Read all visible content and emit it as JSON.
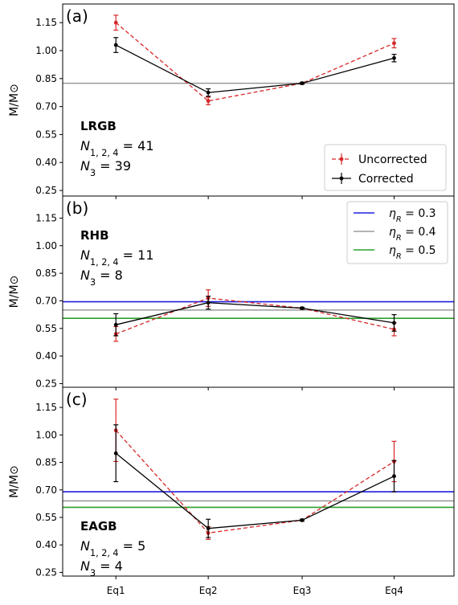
{
  "chart_data": [
    {
      "type": "line",
      "panel_label": "(a)",
      "ylabel": "M/M⊙",
      "ylim": [
        0.22,
        1.25
      ],
      "yticks": [
        "0.25",
        "0.40",
        "0.55",
        "0.70",
        "0.85",
        "1.00",
        "1.15"
      ],
      "ytick_values": [
        0.25,
        0.4,
        0.55,
        0.7,
        0.85,
        1.0,
        1.15
      ],
      "categories": [
        "Eq1",
        "Eq2",
        "Eq3",
        "Eq4"
      ],
      "series": [
        {
          "name": "Uncorrected",
          "color": "#d62728",
          "dashed": true,
          "values": [
            1.15,
            0.73,
            0.825,
            1.04
          ],
          "errors": [
            0.04,
            0.02,
            0.005,
            0.025
          ]
        },
        {
          "name": "Corrected",
          "color": "#000000",
          "dashed": false,
          "values": [
            1.03,
            0.775,
            0.825,
            0.96
          ],
          "errors": [
            0.04,
            0.02,
            0.005,
            0.02
          ]
        }
      ],
      "hlines": [
        {
          "y": 0.825,
          "color": "#9a9a9a"
        }
      ],
      "annotation": {
        "title": "LRGB",
        "line1_sub": "1, 2, 4",
        "line1_val": "41",
        "line2_sub": "3",
        "line2_val": "39"
      },
      "legend": {
        "position": "lower-right",
        "entries": [
          "Uncorrected",
          "Corrected"
        ]
      }
    },
    {
      "type": "line",
      "panel_label": "(b)",
      "ylabel": "M/M⊙",
      "ylim": [
        0.23,
        1.27
      ],
      "yticks": [
        "0.25",
        "0.40",
        "0.55",
        "0.70",
        "0.85",
        "1.00",
        "1.15"
      ],
      "ytick_values": [
        0.25,
        0.4,
        0.55,
        0.7,
        0.85,
        1.0,
        1.15
      ],
      "categories": [
        "Eq1",
        "Eq2",
        "Eq3",
        "Eq4"
      ],
      "series": [
        {
          "name": "Uncorrected",
          "color": "#d62728",
          "dashed": true,
          "values": [
            0.52,
            0.715,
            0.66,
            0.545
          ],
          "errors": [
            0.04,
            0.045,
            0.005,
            0.035
          ]
        },
        {
          "name": "Corrected",
          "color": "#000000",
          "dashed": false,
          "values": [
            0.57,
            0.69,
            0.66,
            0.58
          ],
          "errors": [
            0.06,
            0.035,
            0.005,
            0.045
          ]
        }
      ],
      "hlines": [
        {
          "y": 0.695,
          "color": "#1f1fe0",
          "label": "0.3"
        },
        {
          "y": 0.65,
          "color": "#9a9a9a",
          "label": "0.4"
        },
        {
          "y": 0.605,
          "color": "#2ca02c",
          "label": "0.5"
        }
      ],
      "annotation": {
        "title": "RHB",
        "line1_sub": "1, 2, 4",
        "line1_val": "11",
        "line2_sub": "3",
        "line2_val": "8"
      },
      "legend": {
        "position": "top-right",
        "symbol": "η",
        "subscript": "R",
        "entries": [
          "0.3",
          "0.4",
          "0.5"
        ]
      }
    },
    {
      "type": "line",
      "panel_label": "(c)",
      "ylabel": "M/M⊙",
      "ylim": [
        0.23,
        1.26
      ],
      "yticks": [
        "0.25",
        "0.40",
        "0.55",
        "0.70",
        "0.85",
        "1.00",
        "1.15"
      ],
      "ytick_values": [
        0.25,
        0.4,
        0.55,
        0.7,
        0.85,
        1.0,
        1.15
      ],
      "categories": [
        "Eq1",
        "Eq2",
        "Eq3",
        "Eq4"
      ],
      "series": [
        {
          "name": "Uncorrected",
          "color": "#d62728",
          "dashed": true,
          "values": [
            1.025,
            0.465,
            0.535,
            0.855
          ],
          "errors": [
            0.17,
            0.035,
            0.005,
            0.11
          ]
        },
        {
          "name": "Corrected",
          "color": "#000000",
          "dashed": false,
          "values": [
            0.9,
            0.49,
            0.535,
            0.775
          ],
          "errors": [
            0.155,
            0.05,
            0.005,
            0.085
          ]
        }
      ],
      "hlines": [
        {
          "y": 0.69,
          "color": "#1f1fe0"
        },
        {
          "y": 0.64,
          "color": "#9a9a9a"
        },
        {
          "y": 0.605,
          "color": "#2ca02c"
        }
      ],
      "annotation": {
        "title": "EAGB",
        "line1_sub": "1, 2, 4",
        "line1_val": "5",
        "line2_sub": "3",
        "line2_val": "4"
      }
    }
  ]
}
